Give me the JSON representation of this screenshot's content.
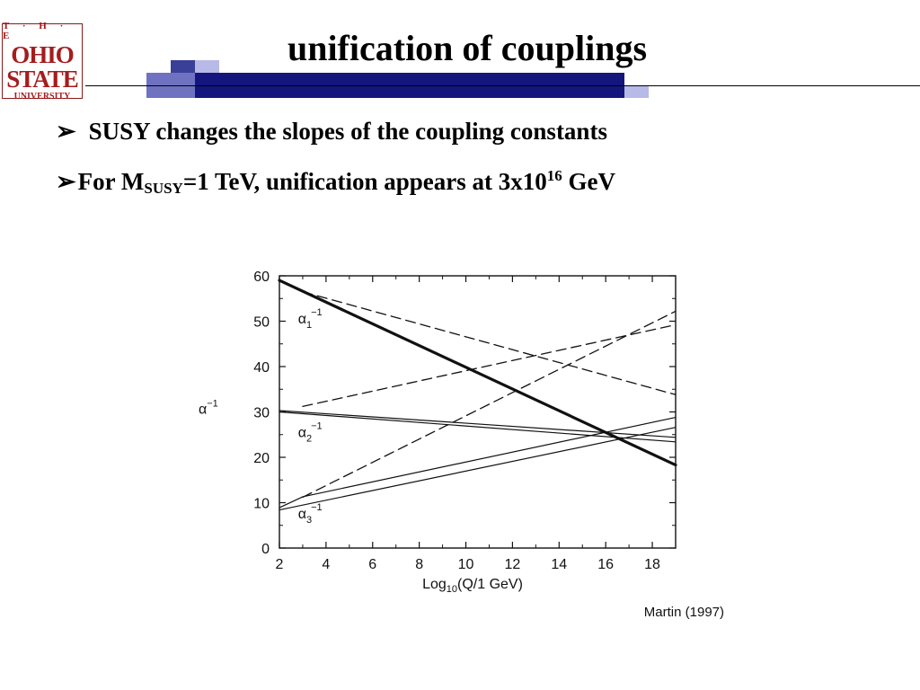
{
  "logo": {
    "line1": "T · H · E",
    "line2": "OHIO",
    "line3": "STATE",
    "line4": "UNIVERSITY"
  },
  "slide": {
    "title": "unification of couplings",
    "bullet1": "SUSY changes the slopes of the coupling constants",
    "bullet2_prefix": "For M",
    "bullet2_sub": "SUSY",
    "bullet2_mid": "=1 TeV, unification appears at 3x10",
    "bullet2_sup": "16",
    "bullet2_suffix": " GeV",
    "arrow_glyph": "➢"
  },
  "chart_data": {
    "type": "line",
    "xlabel_base": "Log",
    "xlabel_sub": "10",
    "xlabel_rest": "(Q/1 GeV)",
    "ylabel": "α",
    "ylabel_sup": "−1",
    "xlim": [
      2,
      19
    ],
    "ylim": [
      0,
      60
    ],
    "xticks": [
      2,
      4,
      6,
      8,
      10,
      12,
      14,
      16,
      18
    ],
    "yticks": [
      0,
      10,
      20,
      30,
      40,
      50,
      60
    ],
    "credit": "Martin (1997)",
    "curve_labels": [
      {
        "base": "α",
        "sub": "1",
        "sup": "−1",
        "at": [
          2.8,
          49.5
        ]
      },
      {
        "base": "α",
        "sub": "2",
        "sup": "−1",
        "at": [
          2.8,
          24.5
        ]
      },
      {
        "base": "α",
        "sub": "3",
        "sup": "−1",
        "at": [
          2.8,
          6.5
        ]
      }
    ],
    "series": [
      {
        "style": "solid",
        "width": 3.2,
        "points": [
          [
            2,
            59.0
          ],
          [
            19,
            18.3
          ]
        ]
      },
      {
        "style": "solid",
        "width": 1.2,
        "points": [
          [
            2,
            30.0
          ],
          [
            19,
            23.4
          ]
        ]
      },
      {
        "style": "solid",
        "width": 1.2,
        "points": [
          [
            2,
            30.3
          ],
          [
            19,
            24.4
          ]
        ]
      },
      {
        "style": "solid",
        "width": 1.2,
        "points": [
          [
            2,
            8.4
          ],
          [
            19,
            26.6
          ]
        ]
      },
      {
        "style": "solid",
        "width": 1.2,
        "points": [
          [
            2,
            8.9
          ],
          [
            3.0,
            11.3
          ],
          [
            19,
            28.8
          ]
        ]
      },
      {
        "style": "dashed",
        "width": 1.3,
        "points": [
          [
            3.0,
            56.5
          ],
          [
            19,
            33.8
          ]
        ]
      },
      {
        "style": "dashed",
        "width": 1.3,
        "points": [
          [
            3.0,
            31.2
          ],
          [
            19,
            49.2
          ]
        ]
      },
      {
        "style": "dashed",
        "width": 1.3,
        "points": [
          [
            3.0,
            11.2
          ],
          [
            19,
            52.2
          ]
        ]
      }
    ]
  }
}
